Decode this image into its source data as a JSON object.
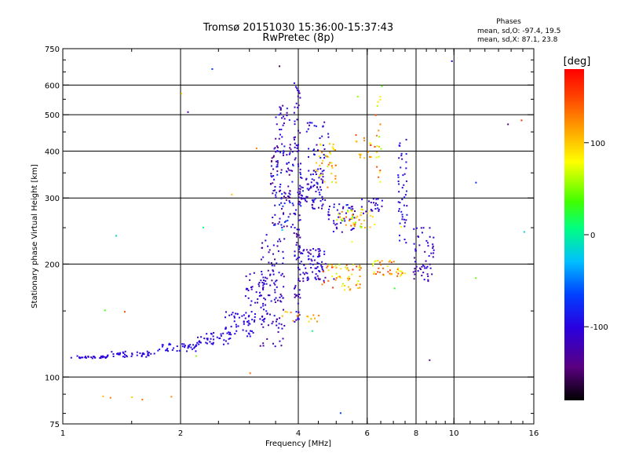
{
  "title_line1": "Tromsø 20151030 15:36:00-15:37:43",
  "title_line2": "RwPretec (8p)",
  "phases": {
    "heading": "Phases",
    "line_o": "mean, sd,O: -97.4, 19.5",
    "line_x": "mean, sd,X:  87.1, 23.8"
  },
  "chart_data": {
    "type": "scatter",
    "title": "Tromsø 20151030 15:36:00-15:37:43",
    "subtitle": "RwPretec (8p)",
    "xlabel": "Frequency [MHz]",
    "ylabel": "Stationary phase Virtual Height [km]",
    "x_scale": "log",
    "y_scale": "log",
    "xlim": [
      1,
      16
    ],
    "ylim": [
      75,
      750
    ],
    "x_ticks": [
      1,
      2,
      4,
      6,
      8,
      10,
      16
    ],
    "x_tick_labels": [
      "1",
      "2",
      "4",
      "6",
      "8",
      "10",
      "16"
    ],
    "y_ticks": [
      75,
      100,
      200,
      300,
      400,
      500,
      600,
      750
    ],
    "y_tick_labels": [
      "75",
      "100",
      "200",
      "300",
      "400",
      "500",
      "600",
      "750"
    ],
    "grid_x": [
      2,
      4,
      6,
      8,
      10
    ],
    "grid_y": [
      100,
      200,
      300,
      400,
      500,
      600
    ],
    "colorbar": {
      "label": "[deg]",
      "range": [
        -180,
        180
      ],
      "ticks": [
        100,
        0,
        -100
      ],
      "tick_labels": [
        "100",
        "0",
        "-100"
      ],
      "colors": [
        "#000000",
        "#5a0080",
        "#2a00e0",
        "#0040ff",
        "#00c0ff",
        "#00ff80",
        "#40ff00",
        "#ffff00",
        "#ffa000",
        "#ff4000",
        "#ff0000"
      ]
    },
    "point_groups": [
      {
        "x_from": 1.05,
        "x_to": 1.3,
        "y_from": 112,
        "y_to": 114,
        "n": 30,
        "phase": -105,
        "spread": 2
      },
      {
        "x_from": 1.3,
        "x_to": 1.75,
        "y_from": 113,
        "y_to": 117,
        "n": 40,
        "phase": -100,
        "spread": 3
      },
      {
        "x_from": 1.75,
        "x_to": 2.2,
        "y_from": 117,
        "y_to": 123,
        "n": 40,
        "phase": -95,
        "spread": 4
      },
      {
        "x_from": 2.2,
        "x_to": 2.7,
        "y_from": 122,
        "y_to": 132,
        "n": 40,
        "phase": -100,
        "spread": 5
      },
      {
        "x_from": 2.6,
        "x_to": 3.1,
        "y_from": 128,
        "y_to": 150,
        "n": 45,
        "phase": -100,
        "spread": 8
      },
      {
        "x_from": 2.9,
        "x_to": 3.3,
        "y_from": 140,
        "y_to": 190,
        "n": 45,
        "phase": -110,
        "spread": 12
      },
      {
        "x_from": 3.2,
        "x_to": 3.7,
        "y_from": 120,
        "y_to": 240,
        "n": 110,
        "phase": -110,
        "spread": 25
      },
      {
        "x_from": 3.4,
        "x_to": 3.9,
        "y_from": 250,
        "y_to": 420,
        "n": 120,
        "phase": -110,
        "spread": 40
      },
      {
        "x_from": 3.5,
        "x_to": 3.8,
        "y_from": 430,
        "y_to": 530,
        "n": 25,
        "phase": -110,
        "spread": 30
      },
      {
        "x_from": 3.9,
        "x_to": 4.05,
        "y_from": 140,
        "y_to": 620,
        "n": 90,
        "phase": -110,
        "spread": 20
      },
      {
        "x_from": 4.0,
        "x_to": 4.7,
        "y_from": 280,
        "y_to": 360,
        "n": 90,
        "phase": -105,
        "spread": 30
      },
      {
        "x_from": 4.0,
        "x_to": 4.7,
        "y_from": 180,
        "y_to": 220,
        "n": 80,
        "phase": -110,
        "spread": 25
      },
      {
        "x_from": 4.2,
        "x_to": 4.8,
        "y_from": 380,
        "y_to": 480,
        "n": 30,
        "phase": -105,
        "spread": 25
      },
      {
        "x_from": 4.4,
        "x_to": 5.0,
        "y_from": 320,
        "y_to": 420,
        "n": 40,
        "phase": 100,
        "spread": 40
      },
      {
        "x_from": 4.7,
        "x_to": 5.6,
        "y_from": 240,
        "y_to": 290,
        "n": 45,
        "phase": -105,
        "spread": 25
      },
      {
        "x_from": 4.6,
        "x_to": 5.8,
        "y_from": 170,
        "y_to": 200,
        "n": 55,
        "phase": 110,
        "spread": 50
      },
      {
        "x_from": 5.0,
        "x_to": 6.3,
        "y_from": 250,
        "y_to": 280,
        "n": 45,
        "phase": 95,
        "spread": 50
      },
      {
        "x_from": 5.5,
        "x_to": 6.3,
        "y_from": 380,
        "y_to": 450,
        "n": 18,
        "phase": 120,
        "spread": 40
      },
      {
        "x_from": 5.8,
        "x_to": 6.6,
        "y_from": 270,
        "y_to": 300,
        "n": 22,
        "phase": -105,
        "spread": 20
      },
      {
        "x_from": 6.2,
        "x_to": 7.5,
        "y_from": 185,
        "y_to": 205,
        "n": 40,
        "phase": 110,
        "spread": 45
      },
      {
        "x_from": 6.3,
        "x_to": 6.6,
        "y_from": 330,
        "y_to": 600,
        "n": 20,
        "phase": 100,
        "spread": 50
      },
      {
        "x_from": 7.2,
        "x_to": 7.6,
        "y_from": 220,
        "y_to": 430,
        "n": 45,
        "phase": -100,
        "spread": 20
      },
      {
        "x_from": 7.8,
        "x_to": 8.9,
        "y_from": 180,
        "y_to": 250,
        "n": 55,
        "phase": -115,
        "spread": 20
      },
      {
        "x_from": 3.6,
        "x_to": 4.6,
        "y_from": 140,
        "y_to": 150,
        "n": 16,
        "phase": 110,
        "spread": 20
      },
      {
        "x_from": 1.2,
        "x_to": 1.9,
        "y_from": 87,
        "y_to": 89,
        "n": 5,
        "phase": 110,
        "spread": 30
      },
      {
        "x_from": 1.2,
        "x_to": 16,
        "y_from": 75,
        "y_to": 700,
        "n": 30,
        "phase": 0,
        "spread": 170
      }
    ]
  }
}
